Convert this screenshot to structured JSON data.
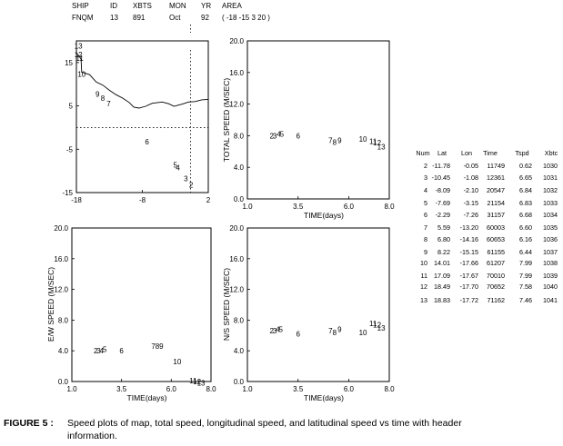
{
  "header": {
    "labels": [
      "SHIP",
      "ID",
      "XBTS",
      "MON",
      "YR",
      "AREA"
    ],
    "values": [
      "FNQM",
      "13",
      "891",
      "Oct",
      "92",
      "( -18 -15  3  20 )"
    ]
  },
  "table": {
    "headers": [
      "Num",
      "Lat",
      "Lon",
      "Time",
      "Tspd",
      "Xbtc"
    ],
    "rows": [
      [
        "2",
        "-11.78",
        "-0.05",
        "11749",
        "0.62",
        "1030"
      ],
      [
        "3",
        "-10.45",
        "-1.08",
        "12361",
        "6.65",
        "1031"
      ],
      [
        "4",
        "-8.09",
        "-2.10",
        "20547",
        "6.84",
        "1032"
      ],
      [
        "5",
        "-7.69",
        "-3.15",
        "21154",
        "6.83",
        "1033"
      ],
      [
        "6",
        "-2.29",
        "-7.26",
        "31157",
        "6.68",
        "1034"
      ],
      [
        "7",
        "5.59",
        "-13.20",
        "60003",
        "6.60",
        "1035"
      ],
      [
        "8",
        "6.80",
        "-14.16",
        "60653",
        "6.16",
        "1036"
      ],
      [
        "9",
        "8.22",
        "-15.15",
        "61155",
        "6.44",
        "1037"
      ],
      [
        "10",
        "14.01",
        "-17.66",
        "61207",
        "7.99",
        "1038"
      ],
      [
        "11",
        "17.09",
        "-17.67",
        "70010",
        "7.99",
        "1039"
      ],
      [
        "12",
        "18.49",
        "-17.70",
        "70652",
        "7.58",
        "1040"
      ],
      [
        "13",
        "18.83",
        "-17.72",
        "71162",
        "7.46",
        "1041"
      ]
    ]
  },
  "caption": {
    "label": "FIGURE 5 :",
    "line1": "Speed plots of map, total speed, longitudinal speed, and latitudinal speed vs time with header",
    "line2": "information."
  },
  "chart_data": [
    {
      "type": "scatter",
      "panel": "map",
      "xlim": [
        -18,
        2
      ],
      "ylim": [
        -15,
        20
      ],
      "xticks": [
        "-18",
        "-8",
        "2"
      ],
      "yticks": [
        "-15",
        "-5",
        "5",
        "15"
      ],
      "points": [
        {
          "label": "2",
          "x": -0.6,
          "y": -13.2
        },
        {
          "label": "3",
          "x": -1.4,
          "y": -11.8
        },
        {
          "label": "4",
          "x": -2.6,
          "y": -9.2
        },
        {
          "label": "5",
          "x": -3.0,
          "y": -8.6
        },
        {
          "label": "6",
          "x": -7.3,
          "y": -3.3
        },
        {
          "label": "7",
          "x": -13.1,
          "y": 5.5
        },
        {
          "label": "8",
          "x": -14.0,
          "y": 6.8
        },
        {
          "label": "9",
          "x": -14.8,
          "y": 7.7
        },
        {
          "label": "10",
          "x": -17.2,
          "y": 12.3
        },
        {
          "label": "11",
          "x": -17.5,
          "y": 16.0
        },
        {
          "label": "12",
          "x": -17.7,
          "y": 16.9
        },
        {
          "label": "13",
          "x": -17.7,
          "y": 18.8
        }
      ],
      "coast": [
        [
          -18,
          17.3
        ],
        [
          -17.3,
          15.8
        ],
        [
          -17.2,
          12.8
        ],
        [
          -16,
          12.2
        ],
        [
          -15,
          10.5
        ],
        [
          -14,
          9.8
        ],
        [
          -13,
          8.6
        ],
        [
          -12,
          7.6
        ],
        [
          -11,
          6.8
        ],
        [
          -10,
          5.8
        ],
        [
          -9.3,
          4.7
        ],
        [
          -8.5,
          4.5
        ],
        [
          -7.5,
          4.9
        ],
        [
          -6.5,
          5.6
        ],
        [
          -5,
          5.9
        ],
        [
          -4,
          5.5
        ],
        [
          -3.2,
          4.9
        ],
        [
          -2,
          5.4
        ],
        [
          -1,
          5.9
        ],
        [
          0,
          6.0
        ],
        [
          1,
          6.4
        ],
        [
          2,
          6.5
        ]
      ],
      "ref_x": -0.7,
      "ref_y": 0
    },
    {
      "type": "scatter",
      "panel": "total",
      "ylabel": "TOTAL SPEED (M/SEC)",
      "xlabel": "TIME(days)",
      "xlim": [
        1,
        8
      ],
      "ylim": [
        0,
        20
      ],
      "xticks": [
        "1.0",
        "3.5",
        "6.0",
        "8.0"
      ],
      "yticks": [
        "0.0",
        "4.0",
        "8.0",
        "12.0",
        "16.0",
        "20.0"
      ],
      "points": [
        {
          "label": "2",
          "x": 2.2,
          "y": 8.0
        },
        {
          "label": "3",
          "x": 2.35,
          "y": 8.0
        },
        {
          "label": "4",
          "x": 2.55,
          "y": 8.2
        },
        {
          "label": "5",
          "x": 2.7,
          "y": 8.2
        },
        {
          "label": "6",
          "x": 3.5,
          "y": 8.0
        },
        {
          "label": "7",
          "x": 5.1,
          "y": 7.4
        },
        {
          "label": "8",
          "x": 5.3,
          "y": 7.2
        },
        {
          "label": "9",
          "x": 5.55,
          "y": 7.4
        },
        {
          "label": "10",
          "x": 6.7,
          "y": 7.6
        },
        {
          "label": "11",
          "x": 7.2,
          "y": 7.3
        },
        {
          "label": "12",
          "x": 7.4,
          "y": 7.1
        },
        {
          "label": "13",
          "x": 7.6,
          "y": 6.6
        }
      ]
    },
    {
      "type": "scatter",
      "panel": "ew",
      "ylabel": "E/W SPEED (M/SEC)",
      "xlabel": "TIME(days)",
      "xlim": [
        1,
        8
      ],
      "ylim": [
        0,
        20
      ],
      "xticks": [
        "1.0",
        "3.5",
        "6.0",
        "8.0"
      ],
      "yticks": [
        "0.0",
        "4.0",
        "8.0",
        "12.0",
        "16.0",
        "20.0"
      ],
      "points": [
        {
          "label": "2",
          "x": 2.2,
          "y": 4.0
        },
        {
          "label": "3",
          "x": 2.35,
          "y": 4.0
        },
        {
          "label": "4",
          "x": 2.5,
          "y": 4.0
        },
        {
          "label": "5",
          "x": 2.65,
          "y": 4.2
        },
        {
          "label": "6",
          "x": 3.5,
          "y": 4.0
        },
        {
          "label": "7",
          "x": 5.1,
          "y": 4.6
        },
        {
          "label": "8",
          "x": 5.3,
          "y": 4.6
        },
        {
          "label": "9",
          "x": 5.5,
          "y": 4.6
        },
        {
          "label": "10",
          "x": 6.3,
          "y": 2.6
        },
        {
          "label": "11",
          "x": 7.1,
          "y": 0.1
        },
        {
          "label": "12",
          "x": 7.3,
          "y": 0.0
        },
        {
          "label": "13",
          "x": 7.5,
          "y": -0.2
        }
      ]
    },
    {
      "type": "scatter",
      "panel": "ns",
      "ylabel": "N/S SPEED (M/SEC)",
      "xlabel": "TIME(days)",
      "xlim": [
        1,
        8
      ],
      "ylim": [
        0,
        20
      ],
      "xticks": [
        "1.0",
        "3.5",
        "6.0",
        "8.0"
      ],
      "yticks": [
        "0.0",
        "4.0",
        "8.0",
        "12.0",
        "16.0",
        "20.0"
      ],
      "points": [
        {
          "label": "2",
          "x": 2.2,
          "y": 6.6
        },
        {
          "label": "3",
          "x": 2.35,
          "y": 6.6
        },
        {
          "label": "4",
          "x": 2.5,
          "y": 6.8
        },
        {
          "label": "5",
          "x": 2.65,
          "y": 6.8
        },
        {
          "label": "6",
          "x": 3.5,
          "y": 6.2
        },
        {
          "label": "7",
          "x": 5.1,
          "y": 6.6
        },
        {
          "label": "8",
          "x": 5.3,
          "y": 6.4
        },
        {
          "label": "9",
          "x": 5.55,
          "y": 6.8
        },
        {
          "label": "10",
          "x": 6.7,
          "y": 6.4
        },
        {
          "label": "11",
          "x": 7.2,
          "y": 7.6
        },
        {
          "label": "12",
          "x": 7.4,
          "y": 7.4
        },
        {
          "label": "13",
          "x": 7.6,
          "y": 7.0
        }
      ]
    }
  ]
}
